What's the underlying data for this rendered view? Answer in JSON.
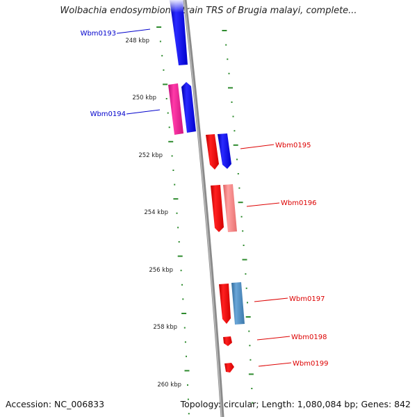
{
  "title": "Wolbachia endosymbiont strain TRS of Brugia malayi, complete...",
  "accession": "Accession: NC_006833",
  "summary": "Topology: circular; Length: 1,080,084 bp; Genes: 842",
  "colors": {
    "backbone": "#8a8a8a",
    "tick": "#2e8b2e",
    "blue_gene": "#0000ee",
    "red_gene": "#ee0000",
    "magenta_gene": "#ee1493",
    "pink_gene": "#f08080",
    "steel_gene": "#4682b4",
    "blue_label": "#0000cc",
    "red_label": "#dd0000"
  },
  "ruler": [
    {
      "label": "248 kbp"
    },
    {
      "label": "250 kbp"
    },
    {
      "label": "252 kbp"
    },
    {
      "label": "254 kbp"
    },
    {
      "label": "256 kbp"
    },
    {
      "label": "258 kbp"
    },
    {
      "label": "260 kbp"
    }
  ],
  "gene_labels": [
    {
      "name": "Wbm0193",
      "color": "#0000cc"
    },
    {
      "name": "Wbm0194",
      "color": "#0000cc"
    },
    {
      "name": "Wbm0195",
      "color": "#dd0000"
    },
    {
      "name": "Wbm0196",
      "color": "#dd0000"
    },
    {
      "name": "Wbm0197",
      "color": "#dd0000"
    },
    {
      "name": "Wbm0198",
      "color": "#dd0000"
    },
    {
      "name": "Wbm0199",
      "color": "#dd0000"
    }
  ]
}
